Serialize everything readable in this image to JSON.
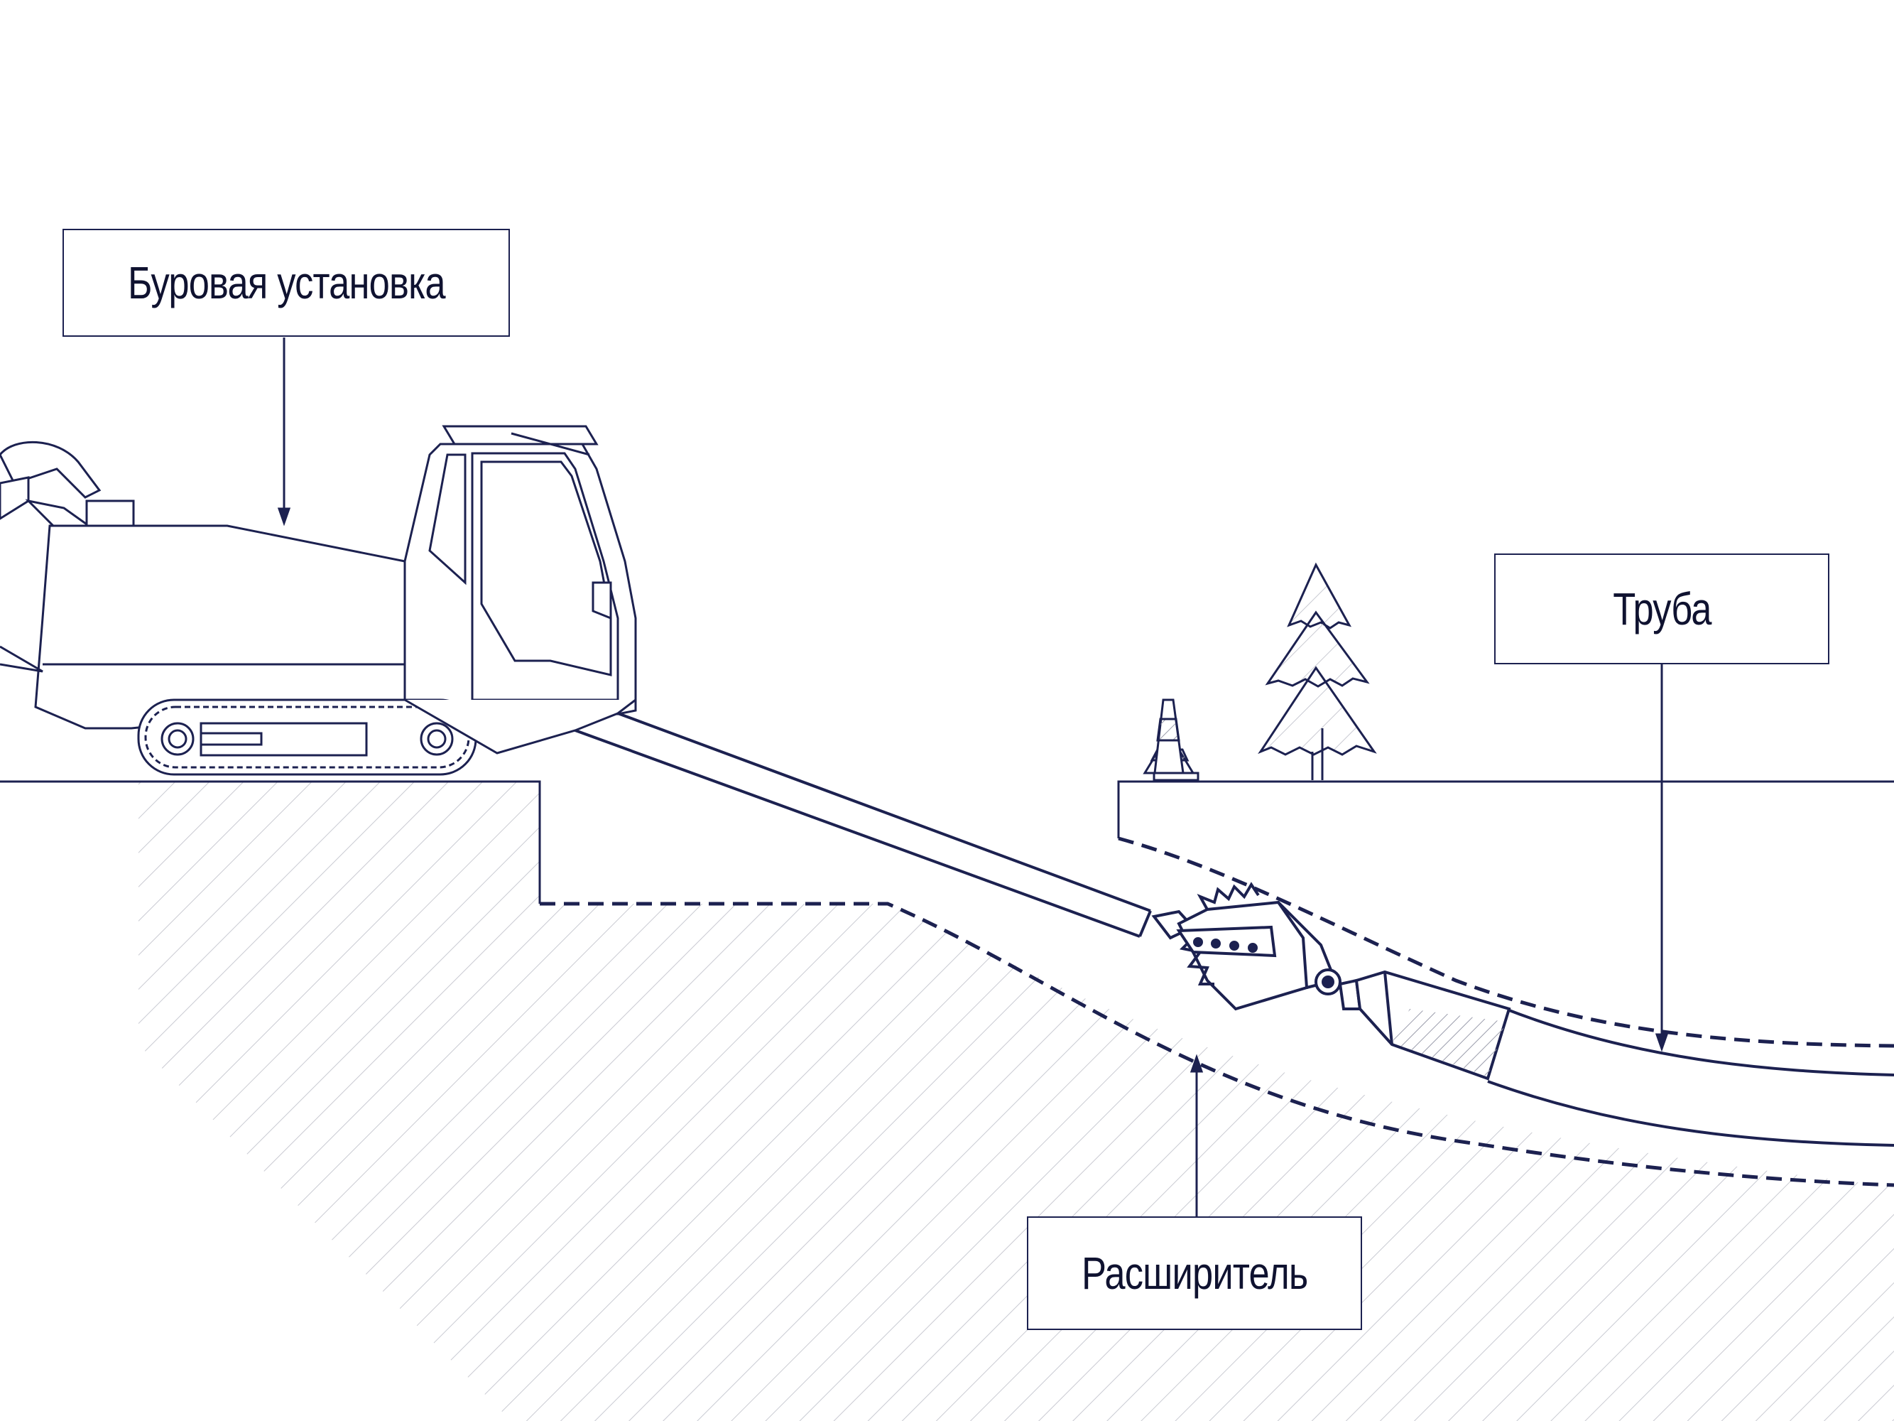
{
  "labels": {
    "rig": "Буровая установка",
    "pipe": "Труба",
    "reamer": "Расширитель"
  },
  "colors": {
    "line": "#1c2150",
    "hatch": "#c9cad2",
    "background": "#ffffff"
  }
}
